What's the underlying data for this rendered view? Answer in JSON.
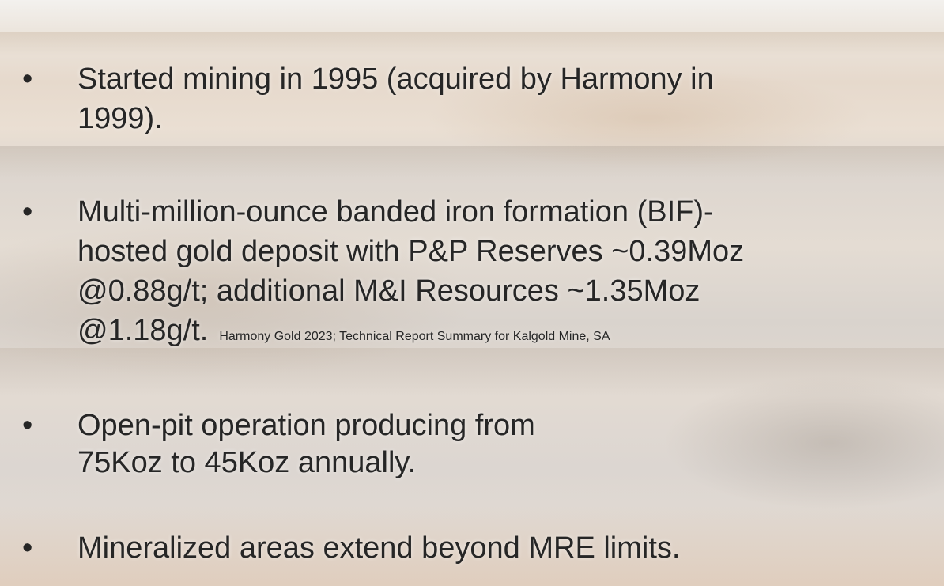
{
  "bullets": [
    {
      "lines": [
        "Started mining in 1995 (acquired by Harmony in",
        "1999)."
      ]
    },
    {
      "lines": [
        "Multi-million-ounce banded iron formation (BIF)-",
        "hosted gold deposit with P&P Reserves ~0.39Moz",
        "@0.88g/t; additional M&I Resources ~1.35Moz",
        "@1.18g/t."
      ],
      "citation": "Harmony Gold 2023; Technical Report Summary for Kalgold Mine, SA"
    },
    {
      "lines": [
        "Open-pit operation producing from",
        "75Koz to 45Koz annually."
      ]
    },
    {
      "lines": [
        "Mineralized areas extend beyond MRE limits."
      ]
    }
  ]
}
